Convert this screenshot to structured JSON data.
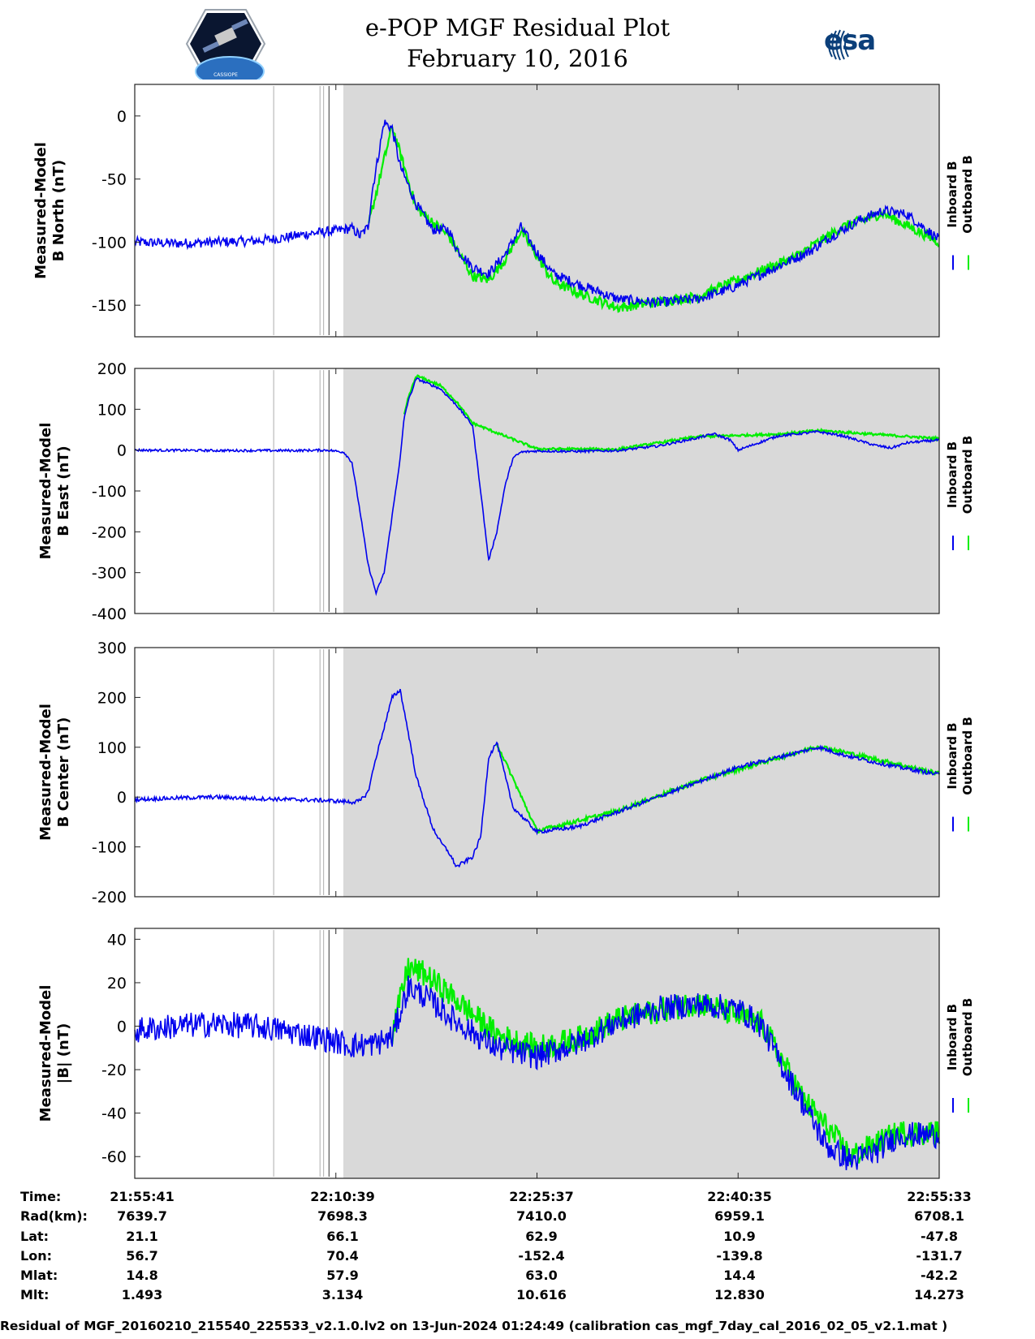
{
  "header": {
    "title_line1": "e-POP MGF Residual Plot",
    "title_line2": "February 10, 2016",
    "left_logo_text": "CASSIOPE",
    "right_logo_text": "esa"
  },
  "legend": {
    "inboard": "Inboard B",
    "outboard": "Outboard B",
    "inboard_color": "#0000ee",
    "outboard_color": "#00ee00"
  },
  "colors": {
    "background_active": "#d9d9d9",
    "inboard": "#0000ee",
    "outboard": "#00ee00",
    "marker": "#bbbbbb"
  },
  "chart_data": [
    {
      "type": "line",
      "ylabel_line1": "Measured-Model",
      "ylabel_line2": "B North (nT)",
      "ylim": [
        -175,
        25
      ],
      "yticks": [
        0,
        -50,
        -100,
        -150
      ],
      "noise": 4,
      "series": [
        {
          "name": "Inboard B",
          "x": [
            0,
            0.05,
            0.1,
            0.15,
            0.18,
            0.2,
            0.22,
            0.25,
            0.27,
            0.28,
            0.29,
            0.295,
            0.31,
            0.32,
            0.33,
            0.35,
            0.37,
            0.39,
            0.4,
            0.42,
            0.44,
            0.46,
            0.48,
            0.5,
            0.52,
            0.55,
            0.6,
            0.65,
            0.7,
            0.72,
            0.74,
            0.78,
            0.82,
            0.84,
            0.86,
            0.88,
            0.9,
            0.93,
            0.96,
            1.0
          ],
          "values": [
            -100,
            -101,
            -100,
            -99,
            -97,
            -95,
            -93,
            -91,
            -89,
            -95,
            -88,
            -60,
            -5,
            -10,
            -40,
            -70,
            -90,
            -90,
            -105,
            -120,
            -125,
            -110,
            -88,
            -108,
            -125,
            -133,
            -145,
            -148,
            -145,
            -141,
            -137,
            -125,
            -113,
            -107,
            -98,
            -90,
            -83,
            -75,
            -78,
            -98
          ]
        },
        {
          "name": "Outboard B",
          "x": [
            0.29,
            0.32,
            0.35,
            0.39,
            0.42,
            0.44,
            0.46,
            0.48,
            0.52,
            0.55,
            0.6,
            0.7,
            0.82,
            0.88,
            0.93,
            1.0
          ],
          "values": [
            -88,
            -8,
            -73,
            -95,
            -127,
            -130,
            -114,
            -91,
            -131,
            -140,
            -152,
            -143,
            -112,
            -88,
            -77,
            -100
          ]
        }
      ]
    },
    {
      "type": "line",
      "ylabel_line1": "Measured-Model",
      "ylabel_line2": "B East (nT)",
      "ylim": [
        -400,
        200
      ],
      "yticks": [
        200,
        100,
        0,
        -100,
        -200,
        -300,
        -400
      ],
      "noise": 3,
      "series": [
        {
          "name": "Inboard B",
          "x": [
            0,
            0.1,
            0.2,
            0.24,
            0.26,
            0.27,
            0.28,
            0.29,
            0.3,
            0.31,
            0.32,
            0.33,
            0.335,
            0.34,
            0.35,
            0.38,
            0.4,
            0.42,
            0.43,
            0.44,
            0.45,
            0.46,
            0.47,
            0.48,
            0.5,
            0.55,
            0.6,
            0.65,
            0.7,
            0.72,
            0.74,
            0.75,
            0.8,
            0.85,
            0.88,
            0.92,
            0.94,
            0.96,
            1.0
          ],
          "values": [
            0,
            -1,
            -1,
            0,
            -5,
            -30,
            -150,
            -280,
            -350,
            -300,
            -160,
            -20,
            80,
            120,
            175,
            150,
            110,
            60,
            -100,
            -270,
            -200,
            -90,
            -20,
            -5,
            -2,
            -3,
            -1,
            10,
            30,
            40,
            25,
            0,
            35,
            45,
            35,
            12,
            5,
            18,
            25
          ]
        },
        {
          "name": "Outboard B",
          "x": [
            0.335,
            0.34,
            0.35,
            0.38,
            0.4,
            0.42,
            0.5,
            0.6,
            0.7,
            0.8,
            0.85,
            1.0
          ],
          "values": [
            85,
            128,
            182,
            158,
            118,
            66,
            3,
            2,
            33,
            39,
            48,
            28
          ]
        }
      ]
    },
    {
      "type": "line",
      "ylabel_line1": "Measured-Model",
      "ylabel_line2": "B Center (nT)",
      "ylim": [
        -200,
        300
      ],
      "yticks": [
        300,
        200,
        100,
        0,
        -100,
        -200
      ],
      "noise": 4,
      "series": [
        {
          "name": "Inboard B",
          "x": [
            0,
            0.05,
            0.1,
            0.15,
            0.2,
            0.24,
            0.27,
            0.28,
            0.29,
            0.3,
            0.32,
            0.33,
            0.34,
            0.35,
            0.37,
            0.38,
            0.39,
            0.4,
            0.42,
            0.43,
            0.44,
            0.45,
            0.47,
            0.5,
            0.55,
            0.6,
            0.65,
            0.7,
            0.75,
            0.8,
            0.85,
            0.88,
            0.92,
            0.95,
            1.0
          ],
          "values": [
            -5,
            -2,
            0,
            -3,
            -5,
            -7,
            -10,
            -8,
            10,
            80,
            200,
            215,
            130,
            40,
            -60,
            -90,
            -110,
            -140,
            -120,
            -80,
            80,
            110,
            -20,
            -70,
            -60,
            -30,
            0,
            30,
            60,
            80,
            100,
            85,
            70,
            60,
            45
          ]
        },
        {
          "name": "Outboard B",
          "x": [
            0.45,
            0.5,
            0.6,
            0.7,
            0.85,
            1.0
          ],
          "values": [
            108,
            -68,
            -28,
            32,
            102,
            47
          ]
        }
      ]
    },
    {
      "type": "line",
      "ylabel_line1": "Measured-Model",
      "ylabel_line2": "|B| (nT)",
      "ylim": [
        -70,
        45
      ],
      "yticks": [
        40,
        20,
        0,
        -20,
        -40,
        -60
      ],
      "noise": 6,
      "series": [
        {
          "name": "Inboard B",
          "x": [
            0,
            0.05,
            0.1,
            0.15,
            0.2,
            0.24,
            0.27,
            0.3,
            0.32,
            0.34,
            0.36,
            0.4,
            0.45,
            0.5,
            0.55,
            0.6,
            0.65,
            0.7,
            0.75,
            0.78,
            0.8,
            0.83,
            0.86,
            0.89,
            0.92,
            0.95,
            1.0
          ],
          "values": [
            -2,
            0,
            1,
            0,
            -3,
            -6,
            -9,
            -8,
            -5,
            18,
            14,
            2,
            -10,
            -14,
            -8,
            2,
            8,
            10,
            8,
            0,
            -15,
            -35,
            -55,
            -62,
            -58,
            -50,
            -50
          ]
        },
        {
          "name": "Outboard B",
          "x": [
            0.32,
            0.34,
            0.36,
            0.4,
            0.45,
            0.5,
            0.55,
            0.6,
            0.7,
            0.78,
            0.83,
            0.89,
            0.95,
            1.0
          ],
          "values": [
            -3,
            27,
            24,
            12,
            -4,
            -10,
            -6,
            3,
            11,
            1,
            -33,
            -60,
            -49,
            -49
          ]
        }
      ]
    }
  ],
  "info": {
    "labels": [
      "Time:",
      "Rad(km):",
      "Lat:",
      "Lon:",
      "Mlat:",
      "Mlt:"
    ],
    "columns": [
      [
        "21:55:41",
        "7639.7",
        "21.1",
        "56.7",
        "14.8",
        "1.493"
      ],
      [
        "22:10:39",
        "7698.3",
        "66.1",
        "70.4",
        "57.9",
        "3.134"
      ],
      [
        "22:25:37",
        "7410.0",
        "62.9",
        "-152.4",
        "63.0",
        "10.616"
      ],
      [
        "22:40:35",
        "6959.1",
        "10.9",
        "-139.8",
        "14.4",
        "12.830"
      ],
      [
        "22:55:33",
        "6708.1",
        "-47.8",
        "-131.7",
        "-42.2",
        "14.273"
      ]
    ]
  },
  "footer": "Residual of MGF_20160210_215540_225533_v2.1.0.lv2 on 13-Jun-2024 01:24:49 (calibration cas_mgf_7day_cal_2016_02_05_v2.1.mat )"
}
